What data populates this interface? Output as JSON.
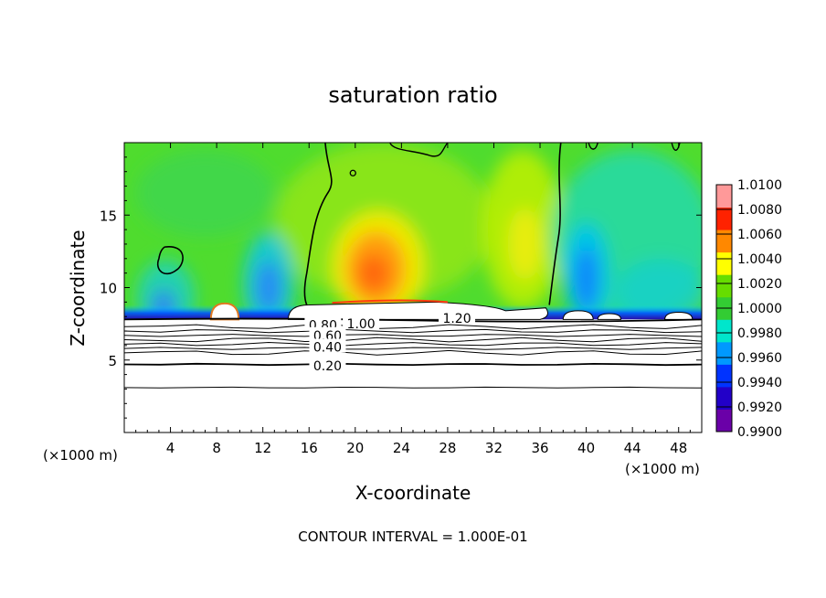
{
  "chart_data": {
    "type": "heatmap",
    "title": "saturation ratio",
    "xlabel": "X-coordinate",
    "ylabel": "Z-coordinate",
    "x_unit": "(×1000 m)",
    "y_unit": "(×1000 m)",
    "xlim": [
      0,
      50
    ],
    "ylim": [
      0,
      20
    ],
    "x_ticks": [
      4,
      8,
      12,
      16,
      20,
      24,
      28,
      32,
      36,
      40,
      44,
      48
    ],
    "y_ticks": [
      5,
      10,
      15
    ],
    "colorbar": {
      "min": 0.99,
      "max": 1.01,
      "levels": [
        0.99,
        0.992,
        0.994,
        0.996,
        0.998,
        1.0,
        1.002,
        1.004,
        1.006,
        1.008,
        1.01
      ],
      "tick_labels": [
        "1.0100",
        "1.0080",
        "1.0060",
        "1.0040",
        "1.0020",
        "1.0000",
        "0.9980",
        "0.9960",
        "0.9940",
        "0.9920",
        "0.9900"
      ],
      "colors": [
        "#6a00a8",
        "#2200c8",
        "#0033ff",
        "#0099ff",
        "#00e6cc",
        "#33cc33",
        "#66dd00",
        "#ffff00",
        "#ff8800",
        "#ff2200",
        "#ff9999"
      ]
    },
    "contour_labels": [
      {
        "text": "1.20",
        "x": 28.8,
        "z": 7.9
      },
      {
        "text": "1.00",
        "x": 20.5,
        "z": 7.5
      },
      {
        "text": "0.80",
        "x": 17.2,
        "z": 7.4
      },
      {
        "text": "0.60",
        "x": 17.6,
        "z": 6.7
      },
      {
        "text": "0.40",
        "x": 17.6,
        "z": 5.9
      },
      {
        "text": "0.20",
        "x": 17.6,
        "z": 4.6
      }
    ],
    "lower_contour_levels_z": [
      3.1,
      4.7,
      5.5,
      5.8,
      6.1,
      6.4,
      6.7,
      7.0,
      7.3
    ],
    "saturation_boundary_z": 7.8,
    "contour_interval_text": "CONTOUR INTERVAL = 1.000E-01"
  }
}
